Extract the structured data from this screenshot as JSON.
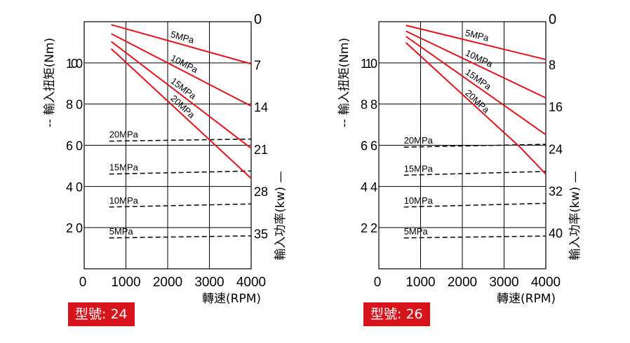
{
  "colors": {
    "power": "#e3141c",
    "torque": "#111111",
    "badge_bg": "#d7141c",
    "grid": "#000000"
  },
  "chart_data": [
    {
      "type": "line",
      "model_label": "型號",
      "model": "24",
      "xlabel": "轉速(RPM)",
      "ylabel_left": "-- 輸入扭矩(Nm)",
      "ylabel_right": "輸入功率(kw) —",
      "x_ticks": [
        0,
        1000,
        2000,
        3000,
        4000
      ],
      "xlim": [
        0,
        4000
      ],
      "left_ticks": [
        20,
        40,
        60,
        80,
        100
      ],
      "ylim_left": [
        0,
        120
      ],
      "right_ticks": [
        0,
        7,
        14,
        21,
        28,
        35
      ],
      "ylim_right": [
        0,
        41
      ],
      "grid": true,
      "torque_series": [
        {
          "name": "20MPa",
          "points": [
            [
              600,
              62
            ],
            [
              4000,
              63
            ]
          ]
        },
        {
          "name": "15MPa",
          "points": [
            [
              600,
              46
            ],
            [
              4000,
              47.5
            ]
          ]
        },
        {
          "name": "10MPa",
          "points": [
            [
              600,
              30
            ],
            [
              4000,
              31.5
            ]
          ]
        },
        {
          "name": "5MPa",
          "points": [
            [
              600,
              15
            ],
            [
              4000,
              16
            ]
          ]
        }
      ],
      "power_series": [
        {
          "name": "5MPa",
          "points": [
            [
              650,
              0.5
            ],
            [
              4000,
              7
            ]
          ]
        },
        {
          "name": "10MPa",
          "points": [
            [
              650,
              2
            ],
            [
              4000,
              14
            ]
          ]
        },
        {
          "name": "15MPa",
          "points": [
            [
              650,
              3.3
            ],
            [
              4000,
              21
            ]
          ]
        },
        {
          "name": "20MPa",
          "points": [
            [
              650,
              4.5
            ],
            [
              4000,
              26
            ]
          ]
        }
      ]
    },
    {
      "type": "line",
      "model_label": "型號",
      "model": "26",
      "xlabel": "轉速(RPM)",
      "ylabel_left": "-- 輸入扭矩(Nm)",
      "ylabel_right": "輸入功率(kw) —",
      "x_ticks": [
        0,
        1000,
        2000,
        3000,
        4000
      ],
      "xlim": [
        0,
        4000
      ],
      "left_ticks": [
        22,
        44,
        66,
        88,
        110
      ],
      "ylim_left": [
        0,
        132
      ],
      "right_ticks": [
        0,
        8,
        16,
        24,
        32,
        40
      ],
      "ylim_right": [
        0,
        47
      ],
      "grid": true,
      "torque_series": [
        {
          "name": "20MPa",
          "points": [
            [
              600,
              65
            ],
            [
              4000,
              66.5
            ]
          ]
        },
        {
          "name": "15MPa",
          "points": [
            [
              600,
              50
            ],
            [
              4000,
              52
            ]
          ]
        },
        {
          "name": "10MPa",
          "points": [
            [
              600,
              33
            ],
            [
              4000,
              35
            ]
          ]
        },
        {
          "name": "5MPa",
          "points": [
            [
              600,
              16.5
            ],
            [
              4000,
              17.5
            ]
          ]
        }
      ],
      "power_series": [
        {
          "name": "5MPa",
          "points": [
            [
              650,
              0.7
            ],
            [
              4000,
              7.2
            ]
          ]
        },
        {
          "name": "10MPa",
          "points": [
            [
              650,
              1.8
            ],
            [
              4000,
              14.5
            ]
          ]
        },
        {
          "name": "15MPa",
          "points": [
            [
              650,
              2.8
            ],
            [
              4000,
              21.5
            ]
          ]
        },
        {
          "name": "20MPa",
          "points": [
            [
              650,
              4.0
            ],
            [
              3400,
              24
            ],
            [
              4000,
              29
            ]
          ]
        }
      ]
    }
  ]
}
